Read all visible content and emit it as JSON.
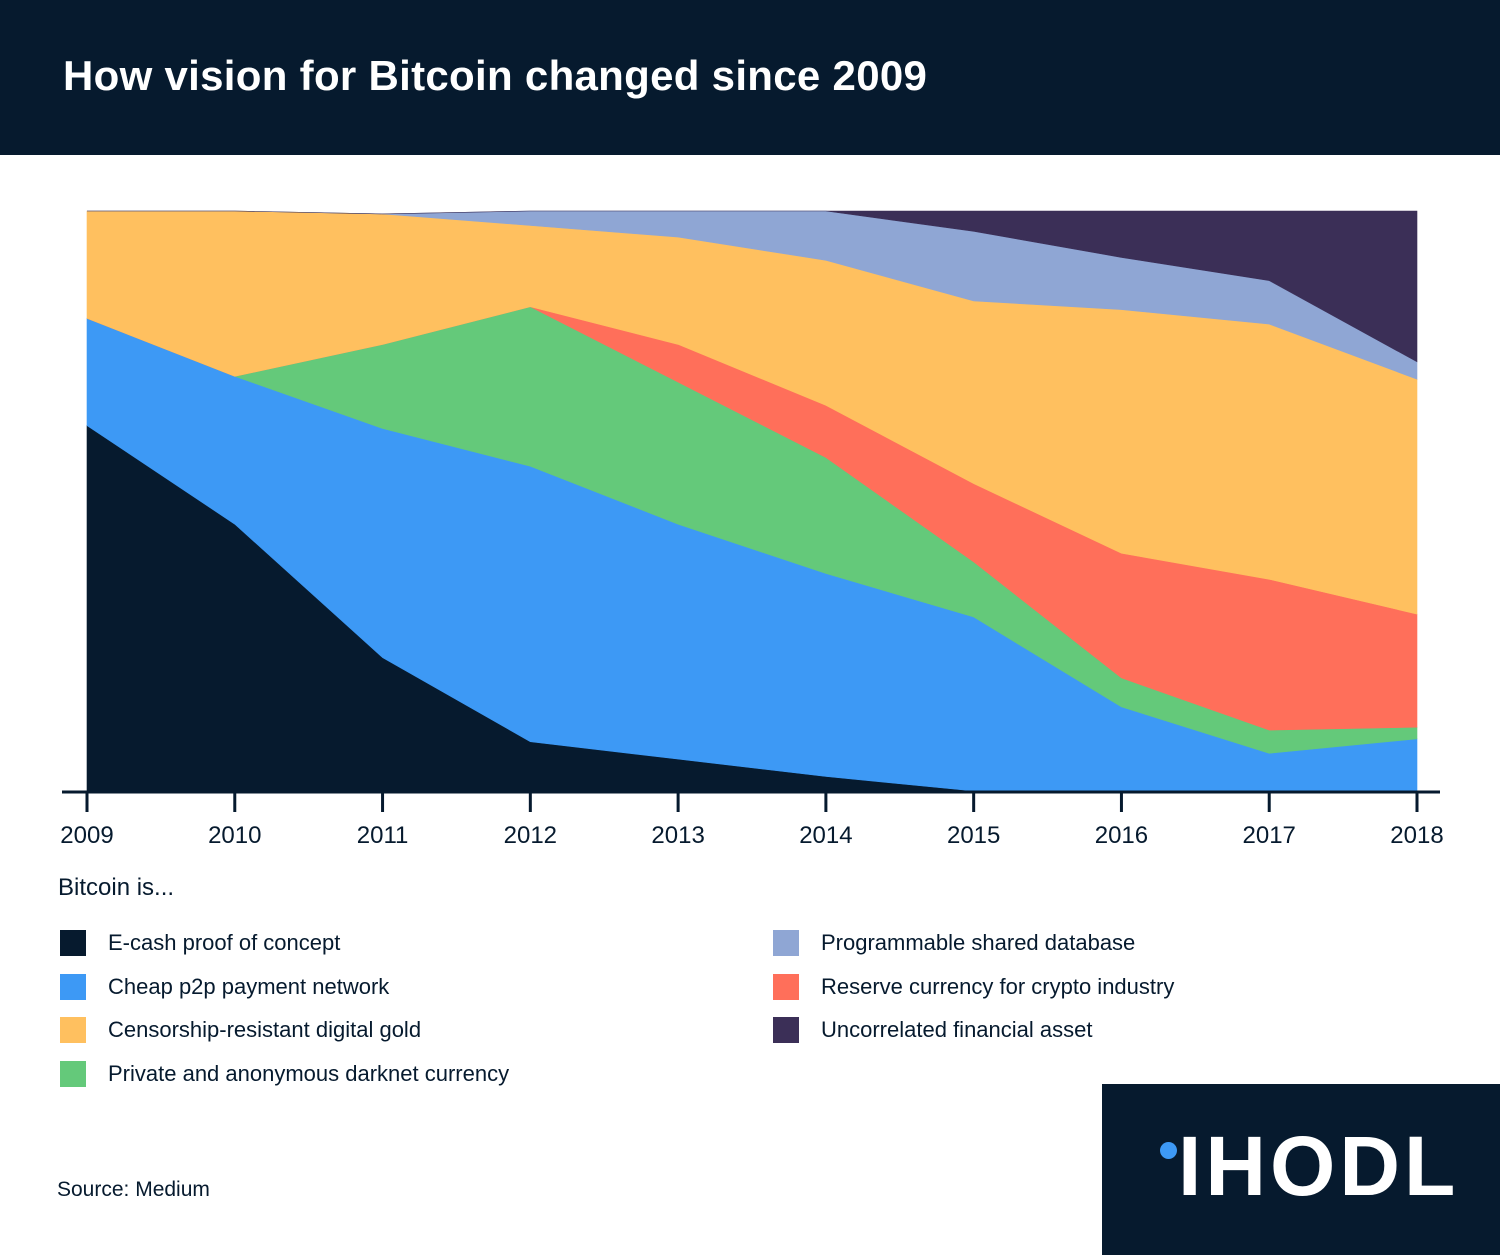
{
  "title": "How vision for Bitcoin changed since 2009",
  "chart_data": {
    "type": "area",
    "stacked": true,
    "normalized": true,
    "x": [
      "2009",
      "2010",
      "2011",
      "2012",
      "2013",
      "2014",
      "2015",
      "2016",
      "2017",
      "2018"
    ],
    "ylim": [
      0,
      100
    ],
    "y_axis_shown": false,
    "grid": false,
    "legend_title": "Bitcoin is...",
    "legend_position": "bottom",
    "series": [
      {
        "name": "E-cash proof of concept",
        "color": "#061a2e",
        "values": [
          63,
          46,
          23,
          8.5,
          5.5,
          2.5,
          0,
          0,
          0,
          0
        ]
      },
      {
        "name": "Cheap p2p payment network",
        "color": "#3d99f5",
        "values": [
          18.5,
          25.5,
          39.5,
          47.5,
          40.5,
          35,
          30,
          14.5,
          6.5,
          9
        ]
      },
      {
        "name": "Private and anonymous darknet currency",
        "color": "#64c97a",
        "values": [
          0,
          0,
          14.5,
          27.5,
          24.5,
          20,
          9.5,
          5,
          4,
          2
        ]
      },
      {
        "name": "Reserve currency for crypto industry",
        "color": "#ff6f5a",
        "values": [
          0,
          0,
          0,
          0,
          6.5,
          9,
          13.5,
          21.5,
          26,
          19.5
        ]
      },
      {
        "name": "Censorship-resistant digital gold",
        "color": "#ffc05f",
        "values": [
          18.5,
          28.5,
          22.5,
          14,
          18.5,
          25,
          31.5,
          42,
          44,
          40.5
        ]
      },
      {
        "name": "Programmable shared database",
        "color": "#8fa6d4",
        "values": [
          0,
          0,
          0,
          2.5,
          4.5,
          8.5,
          12,
          9,
          7.5,
          3
        ]
      },
      {
        "name": "Uncorrelated financial asset",
        "color": "#3b2f57",
        "values": [
          0,
          0,
          0,
          0,
          0,
          0,
          3.5,
          8,
          12,
          26
        ]
      }
    ]
  },
  "legend": {
    "heading": "Bitcoin is...",
    "left": [
      {
        "label": "E-cash proof of concept",
        "color": "#061a2e"
      },
      {
        "label": "Cheap p2p payment network",
        "color": "#3d99f5"
      },
      {
        "label": "Censorship-resistant digital gold",
        "color": "#ffc05f"
      },
      {
        "label": "Private and anonymous darknet currency",
        "color": "#64c97a"
      }
    ],
    "right": [
      {
        "label": "Programmable shared database",
        "color": "#8fa6d4"
      },
      {
        "label": "Reserve currency for crypto industry",
        "color": "#ff6f5a"
      },
      {
        "label": "Uncorrelated financial asset",
        "color": "#3b2f57"
      }
    ]
  },
  "source": "Source: Medium",
  "brand": {
    "name": "IHODL",
    "text": "IHODL",
    "accent_color": "#3d99f5"
  }
}
